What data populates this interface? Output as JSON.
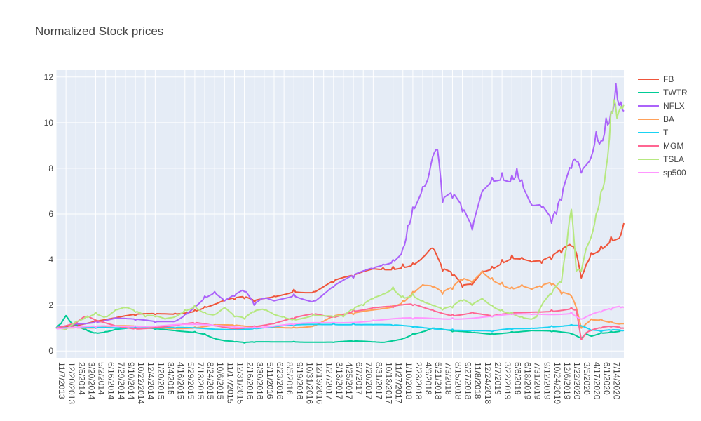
{
  "chart_data": {
    "type": "line",
    "title": "Normalized Stock prices",
    "xlabel": "",
    "ylabel": "",
    "ylim": [
      -0.3,
      12.3
    ],
    "yticks": [
      0,
      2,
      4,
      6,
      8,
      10,
      12
    ],
    "grid": true,
    "legend_position": "right",
    "x_tick_labels": [
      "11/7/2013",
      "12/20/2013",
      "2/5/2014",
      "3/20/2014",
      "5/2/2014",
      "6/16/2014",
      "7/29/2014",
      "9/10/2014",
      "10/22/2014",
      "12/4/2014",
      "1/20/2015",
      "3/4/2015",
      "4/16/2015",
      "5/29/2015",
      "7/13/2015",
      "8/24/2015",
      "10/6/2015",
      "11/17/2015",
      "12/31/2015",
      "2/16/2016",
      "3/30/2016",
      "5/11/2016",
      "6/23/2016",
      "8/5/2016",
      "9/19/2016",
      "10/31/2016",
      "12/13/2016",
      "1/27/2017",
      "3/13/2017",
      "4/25/2017",
      "6/7/2017",
      "7/20/2017",
      "8/31/2017",
      "10/13/2017",
      "11/27/2017",
      "1/10/2018",
      "2/23/2018",
      "4/9/2018",
      "5/21/2018",
      "7/3/2018",
      "8/15/2018",
      "9/27/2018",
      "11/8/2018",
      "12/24/2018",
      "2/7/2019",
      "3/22/2019",
      "5/6/2019",
      "6/18/2019",
      "7/31/2019",
      "9/12/2019",
      "10/24/2019",
      "12/6/2019",
      "1/22/2020",
      "3/5/2020",
      "4/17/2020",
      "6/1/2020",
      "7/14/2020"
    ],
    "x_end_index": 57.3,
    "series": [
      {
        "name": "FB",
        "color": "#EF553B",
        "x": [
          0,
          2,
          4,
          6,
          8,
          10,
          12,
          14,
          15,
          16,
          17,
          18,
          19,
          20,
          22,
          24,
          26,
          28,
          30,
          32,
          33,
          34,
          35,
          36,
          37,
          38,
          39,
          40,
          41,
          42,
          43,
          44,
          45,
          46,
          47,
          48,
          49,
          50,
          51,
          52,
          52.5,
          53,
          53.5,
          54,
          55,
          56,
          57,
          57.3
        ],
        "y": [
          1,
          1.15,
          1.35,
          1.45,
          1.55,
          1.6,
          1.65,
          1.8,
          1.95,
          2.05,
          2.2,
          2.25,
          2.3,
          2.15,
          2.4,
          2.7,
          2.6,
          3.0,
          3.2,
          3.6,
          3.65,
          3.7,
          3.8,
          3.85,
          4.1,
          4.5,
          3.5,
          3.3,
          2.8,
          2.9,
          3.5,
          3.7,
          4.0,
          4.2,
          4.1,
          3.9,
          3.85,
          4.0,
          4.3,
          4.6,
          4.3,
          3.2,
          3.8,
          4.3,
          4.6,
          5.0,
          5.1,
          5.6
        ]
      },
      {
        "name": "TWTR",
        "color": "#00CC96",
        "x": [
          0,
          0.5,
          1,
          1.5,
          2,
          3,
          4,
          5,
          6,
          8,
          10,
          12,
          14,
          15,
          16,
          17,
          18,
          19,
          20,
          24,
          28,
          30,
          33,
          35,
          36,
          37,
          38,
          40,
          42,
          44,
          46,
          48,
          50,
          52,
          53,
          53.5,
          54,
          55,
          56,
          57,
          57.3
        ],
        "y": [
          1,
          1.2,
          1.55,
          1.25,
          1.15,
          0.95,
          0.8,
          0.85,
          0.95,
          1.0,
          0.95,
          0.9,
          0.85,
          0.75,
          0.55,
          0.45,
          0.4,
          0.35,
          0.38,
          0.42,
          0.38,
          0.42,
          0.38,
          0.55,
          0.75,
          0.85,
          1.0,
          0.85,
          0.8,
          0.75,
          0.85,
          0.9,
          0.85,
          0.75,
          0.55,
          0.75,
          0.65,
          0.8,
          0.85,
          0.9,
          0.9
        ]
      },
      {
        "name": "NFLX",
        "color": "#AB63FA",
        "x": [
          0,
          2,
          4,
          6,
          8,
          10,
          12,
          13,
          14,
          15,
          16,
          17,
          18,
          19,
          20,
          21,
          22,
          24,
          26,
          28,
          30,
          32,
          33,
          34,
          35,
          35.5,
          36,
          37,
          37.5,
          38,
          38.5,
          39,
          40,
          41,
          42,
          43,
          44,
          45,
          46,
          46.5,
          47,
          48,
          49,
          50,
          50.5,
          51,
          52,
          52.5,
          53,
          54,
          54.5,
          55,
          55.5,
          56,
          56.5,
          57,
          57.3
        ],
        "y": [
          1,
          1.2,
          1.3,
          1.45,
          1.35,
          1.25,
          1.3,
          1.6,
          2.0,
          2.4,
          2.6,
          2.2,
          2.4,
          2.6,
          2.0,
          2.3,
          2.2,
          2.5,
          2.2,
          2.8,
          3.2,
          3.6,
          3.8,
          4.0,
          4.5,
          5.5,
          6.3,
          7.2,
          7.5,
          8.5,
          8.8,
          6.5,
          6.7,
          6.1,
          5.3,
          7.0,
          7.6,
          7.8,
          7.7,
          8.0,
          7.5,
          6.4,
          6.3,
          5.6,
          6.0,
          6.6,
          8.0,
          8.3,
          7.8,
          8.5,
          9.6,
          9.2,
          10.2,
          10.5,
          11.7,
          10.9,
          10.5
        ]
      },
      {
        "name": "BA",
        "color": "#FFA15A",
        "x": [
          0,
          2,
          4,
          6,
          8,
          10,
          12,
          14,
          16,
          18,
          20,
          22,
          24,
          26,
          28,
          30,
          32,
          34,
          35,
          36,
          37,
          38,
          39,
          40,
          41,
          42,
          43,
          44,
          45,
          46,
          47,
          48,
          49,
          50,
          51,
          52,
          52.5,
          53,
          53.5,
          54,
          55,
          56,
          57,
          57.3
        ],
        "y": [
          1,
          1.05,
          1.05,
          1.1,
          1.05,
          1.0,
          1.0,
          1.05,
          1.15,
          1.1,
          1.0,
          1.05,
          1.05,
          1.1,
          1.5,
          1.6,
          1.8,
          2.0,
          2.2,
          2.6,
          2.9,
          2.8,
          2.5,
          2.7,
          3.1,
          3.0,
          3.5,
          3.2,
          3.0,
          2.8,
          2.9,
          2.7,
          2.8,
          2.9,
          2.5,
          2.4,
          1.9,
          1.0,
          1.2,
          1.4,
          1.4,
          1.3,
          1.2,
          1.2
        ]
      },
      {
        "name": "T",
        "color": "#19D3F3",
        "x": [
          0,
          4,
          8,
          12,
          16,
          20,
          24,
          28,
          30,
          32,
          34,
          36,
          38,
          40,
          42,
          44,
          46,
          48,
          50,
          52,
          53,
          54,
          55,
          56,
          57,
          57.3
        ],
        "y": [
          1,
          1.0,
          1.05,
          1.0,
          0.95,
          1.0,
          1.1,
          1.2,
          1.2,
          1.15,
          1.1,
          1.05,
          1.0,
          0.95,
          0.9,
          0.85,
          0.95,
          1.0,
          1.1,
          1.15,
          1.1,
          0.9,
          0.85,
          0.9,
          0.9,
          0.9
        ]
      },
      {
        "name": "MGM",
        "color": "#FF6692",
        "x": [
          0,
          2,
          3,
          4,
          6,
          8,
          10,
          12,
          14,
          16,
          18,
          20,
          22,
          24,
          26,
          28,
          30,
          32,
          34,
          36,
          38,
          40,
          42,
          44,
          46,
          48,
          50,
          52,
          52.5,
          53,
          53.5,
          54,
          55,
          56,
          57,
          57.3
        ],
        "y": [
          1,
          1.2,
          1.5,
          1.3,
          1.1,
          1.0,
          1.05,
          1.1,
          1.2,
          1.1,
          1.0,
          1.1,
          1.2,
          1.4,
          1.6,
          1.5,
          1.8,
          1.9,
          1.9,
          2.0,
          1.8,
          1.6,
          1.7,
          1.5,
          1.6,
          1.7,
          1.8,
          1.9,
          1.8,
          0.5,
          0.8,
          0.9,
          1.0,
          1.05,
          1.0,
          1.0
        ]
      },
      {
        "name": "TSLA",
        "color": "#B6E880",
        "x": [
          0,
          1,
          2,
          3,
          4,
          5,
          6,
          7,
          8,
          9,
          10,
          11,
          12,
          13,
          14,
          15,
          16,
          17,
          18,
          19,
          20,
          21,
          22,
          23,
          24,
          26,
          28,
          29,
          30,
          31,
          32,
          33,
          34,
          35,
          36,
          37,
          38,
          39,
          40,
          41,
          42,
          43,
          44,
          45,
          46,
          47,
          48,
          48.5,
          49,
          50,
          51,
          51.5,
          52,
          52.5,
          53,
          53.5,
          54,
          54.5,
          55,
          55.5,
          56,
          56.3,
          56.6,
          57,
          57.3
        ],
        "y": [
          1,
          0.95,
          1.3,
          1.5,
          1.7,
          1.5,
          1.8,
          1.9,
          1.7,
          1.5,
          1.5,
          1.4,
          1.5,
          1.8,
          2.0,
          1.7,
          1.6,
          1.9,
          1.5,
          1.4,
          1.7,
          1.8,
          1.6,
          1.5,
          1.4,
          1.6,
          1.5,
          1.5,
          1.8,
          2.0,
          2.3,
          2.5,
          2.8,
          2.4,
          2.5,
          2.2,
          2.0,
          1.8,
          1.9,
          2.2,
          2.0,
          2.3,
          2.0,
          1.8,
          1.7,
          1.5,
          1.4,
          1.5,
          2.0,
          2.5,
          3.0,
          4.5,
          6.2,
          3.5,
          3.5,
          4.5,
          5.0,
          6.0,
          7.0,
          8.0,
          10.5,
          11.0,
          10.2,
          10.7,
          10.8
        ]
      },
      {
        "name": "sp500",
        "color": "#FF97FF",
        "x": [
          0,
          4,
          8,
          12,
          16,
          20,
          24,
          28,
          32,
          36,
          40,
          44,
          48,
          52,
          53,
          53.5,
          54,
          55,
          56,
          57,
          57.3
        ],
        "y": [
          1,
          1.05,
          1.1,
          1.15,
          1.1,
          1.05,
          1.15,
          1.25,
          1.35,
          1.4,
          1.45,
          1.5,
          1.6,
          1.7,
          1.4,
          1.5,
          1.6,
          1.7,
          1.8,
          1.9,
          1.9
        ]
      }
    ]
  }
}
